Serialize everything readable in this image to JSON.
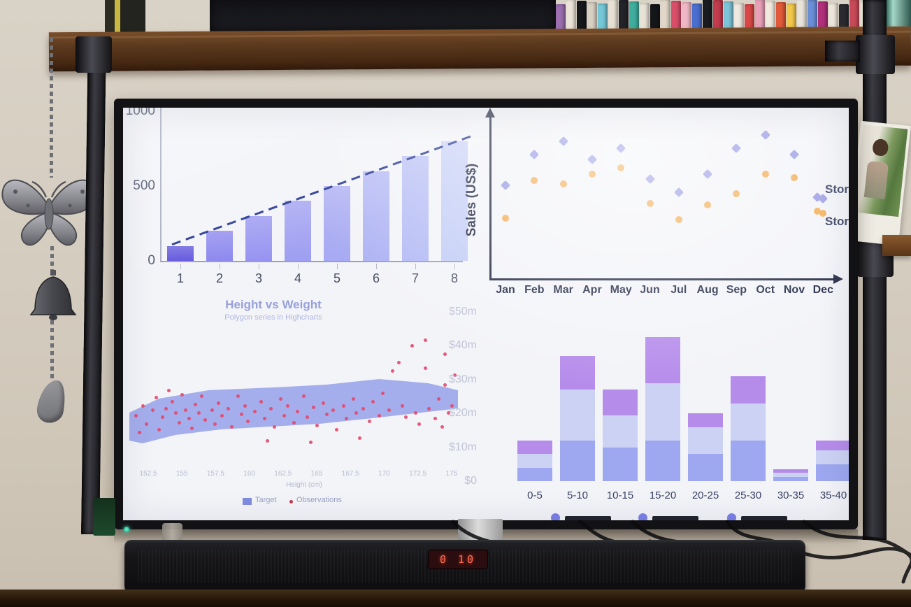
{
  "scene": {
    "soundbar_display": "0 10",
    "decor_icons": [
      "butterfly-ornament",
      "bell-ornament",
      "feather-pendant",
      "chain",
      "industrial-pipe",
      "wooden-shelf",
      "dvd-collection",
      "photo-card",
      "soundbar",
      "tv"
    ]
  },
  "books": [
    "#9b6fb0",
    "#ece4d8",
    "#17181c",
    "#d9d0c4",
    "#74c7d6",
    "#e8e2d6",
    "#23242a",
    "#3fae9f",
    "#e9e2d6",
    "#15161a",
    "#e2d8ca",
    "#d94f6a",
    "#f0b8c6",
    "#4a6fd0",
    "#1a1b20",
    "#c23b4e",
    "#7cc4d8",
    "#efe9df",
    "#d94848",
    "#e8a0b8",
    "#f0eade",
    "#e05a3a",
    "#f2c84b",
    "#e8e4dc",
    "#6a8fd8",
    "#b0307a",
    "#ece6da",
    "#2a2b31",
    "#c84a58",
    "#e6ded0"
  ],
  "chart_data": [
    {
      "id": "column-trend",
      "type": "bar",
      "title": "",
      "categories": [
        "1",
        "2",
        "3",
        "4",
        "5",
        "6",
        "7",
        "8"
      ],
      "values": [
        100,
        200,
        300,
        400,
        500,
        600,
        700,
        800
      ],
      "yticks": [
        "1000",
        "500",
        "0"
      ],
      "ylim": [
        0,
        1000
      ],
      "bar_colors": [
        "#6156dd",
        "#8b87ef",
        "#9694f1",
        "#9f9ff2",
        "#a7a9f3",
        "#adb2f4",
        "#b3baf5",
        "#c2ccf7"
      ],
      "trendline": {
        "present": true,
        "style": "dashed",
        "color": "#2c3c96"
      },
      "grid": false
    },
    {
      "id": "monthly-sales-scatter",
      "type": "scatter",
      "ylabel": "Sales (US$)",
      "categories": [
        "Jan",
        "Feb",
        "Mar",
        "Apr",
        "May",
        "Jun",
        "Jul",
        "Aug",
        "Sep",
        "Oct",
        "Nov",
        "Dec"
      ],
      "series": [
        {
          "name": "Store",
          "marker": "diamond",
          "color": "#9698e2",
          "values": [
            57,
            76,
            84,
            73,
            80,
            61,
            53,
            64,
            80,
            88,
            76,
            49
          ]
        },
        {
          "name": "Store",
          "marker": "circle",
          "color": "#f2aa4e",
          "values": [
            37,
            60,
            58,
            64,
            68,
            46,
            36,
            45,
            52,
            64,
            62,
            40
          ]
        }
      ],
      "value_scale": "relative 0-100 of plot height (no numeric ticks shown)",
      "legend_position": "right",
      "legend_labels_clipped": true,
      "axes_style": "arrows"
    },
    {
      "id": "height-vs-weight",
      "type": "scatter",
      "title": "Height vs Weight",
      "subtitle": "Polygon series in Highcharts",
      "xlabel": "Height (cm)",
      "xticks": [
        "152.5",
        "155",
        "157.5",
        "160",
        "162.5",
        "165",
        "167.5",
        "170",
        "172.5",
        "175"
      ],
      "series": [
        {
          "name": "Target",
          "type": "polygon",
          "color": "#8b97e8",
          "polygon_pct": [
            [
              0,
              60
            ],
            [
              9,
              50
            ],
            [
              24,
              44
            ],
            [
              44,
              42
            ],
            [
              60,
              40
            ],
            [
              76,
              36
            ],
            [
              91,
              39
            ],
            [
              100,
              44
            ],
            [
              100,
              57
            ],
            [
              89,
              60
            ],
            [
              74,
              64
            ],
            [
              58,
              68
            ],
            [
              43,
              70
            ],
            [
              28,
              72
            ],
            [
              14,
              76
            ],
            [
              4,
              82
            ],
            [
              0,
              80
            ]
          ]
        },
        {
          "name": "Observations",
          "type": "scatter",
          "color": "#e5476b",
          "points_pct": [
            [
              2,
              62
            ],
            [
              3,
              74
            ],
            [
              4,
              55
            ],
            [
              5,
              68
            ],
            [
              7,
              58
            ],
            [
              8,
              49
            ],
            [
              9,
              72
            ],
            [
              10,
              63
            ],
            [
              11,
              57
            ],
            [
              12,
              44
            ],
            [
              13,
              52
            ],
            [
              14,
              60
            ],
            [
              15,
              67
            ],
            [
              16,
              47
            ],
            [
              17,
              58
            ],
            [
              18,
              64
            ],
            [
              19,
              71
            ],
            [
              20,
              54
            ],
            [
              21,
              60
            ],
            [
              22,
              48
            ],
            [
              23,
              65
            ],
            [
              25,
              58
            ],
            [
              26,
              68
            ],
            [
              27,
              53
            ],
            [
              28,
              62
            ],
            [
              30,
              57
            ],
            [
              31,
              70
            ],
            [
              33,
              48
            ],
            [
              34,
              61
            ],
            [
              35,
              55
            ],
            [
              36,
              66
            ],
            [
              38,
              59
            ],
            [
              40,
              52
            ],
            [
              41,
              64
            ],
            [
              42,
              80
            ],
            [
              43,
              57
            ],
            [
              44,
              70
            ],
            [
              46,
              50
            ],
            [
              47,
              62
            ],
            [
              48,
              55
            ],
            [
              50,
              67
            ],
            [
              51,
              59
            ],
            [
              53,
              48
            ],
            [
              54,
              63
            ],
            [
              55,
              81
            ],
            [
              56,
              56
            ],
            [
              57,
              69
            ],
            [
              59,
              53
            ],
            [
              60,
              61
            ],
            [
              62,
              58
            ],
            [
              63,
              72
            ],
            [
              65,
              55
            ],
            [
              66,
              64
            ],
            [
              68,
              50
            ],
            [
              69,
              60
            ],
            [
              70,
              78
            ],
            [
              71,
              57
            ],
            [
              73,
              66
            ],
            [
              74,
              52
            ],
            [
              76,
              62
            ],
            [
              77,
              46
            ],
            [
              79,
              58
            ],
            [
              80,
              30
            ],
            [
              82,
              24
            ],
            [
              83,
              55
            ],
            [
              84,
              63
            ],
            [
              86,
              12
            ],
            [
              87,
              60
            ],
            [
              88,
              68
            ],
            [
              90,
              8
            ],
            [
              90,
              28
            ],
            [
              91,
              57
            ],
            [
              93,
              64
            ],
            [
              94,
              50
            ],
            [
              95,
              70
            ],
            [
              96,
              40
            ],
            [
              96,
              18
            ],
            [
              97,
              60
            ],
            [
              98,
              55
            ],
            [
              99,
              33
            ]
          ]
        }
      ],
      "legend_position": "bottom"
    },
    {
      "id": "stacked-distribution",
      "type": "bar",
      "stacked": true,
      "yticks": [
        "$50m",
        "$40m",
        "$30m",
        "$20m",
        "$10m",
        "$0"
      ],
      "ylim_millions": [
        0,
        50
      ],
      "categories": [
        "0-5",
        "5-10",
        "10-15",
        "15-20",
        "20-25",
        "25-30",
        "30-35",
        "35-40"
      ],
      "series": [
        {
          "name": "segment-bottom",
          "color": "#9da8f0",
          "values": [
            4,
            12,
            10,
            12,
            8,
            12,
            1.2,
            5
          ]
        },
        {
          "name": "segment-middle",
          "color": "#cbd2f4",
          "values": [
            4,
            15,
            9.5,
            17,
            8,
            11,
            1.2,
            4
          ]
        },
        {
          "name": "segment-top",
          "color": "#b68ceb",
          "values": [
            4,
            10,
            7.5,
            13.5,
            4,
            8,
            1.2,
            3
          ]
        }
      ],
      "totals_millions": [
        12,
        37,
        27,
        42.5,
        20,
        31,
        3.6,
        12
      ],
      "legend": {
        "dot_color": "#7b80e8",
        "items": 3,
        "labels_clipped_by_bezel": true
      },
      "last_category_clipped": true
    }
  ]
}
